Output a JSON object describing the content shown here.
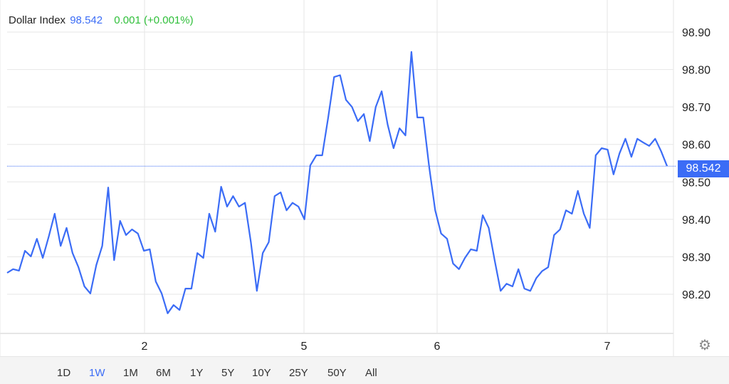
{
  "header": {
    "title": "Dollar Index",
    "price": "98.542",
    "change": "0.001 (+0.001%)"
  },
  "colors": {
    "line": "#3b6cf6",
    "change_positive": "#2fbf3a",
    "grid": "#e6e6e6"
  },
  "ranges": [
    {
      "label": "1D"
    },
    {
      "label": "1W",
      "active": true
    },
    {
      "label": "1M"
    },
    {
      "label": "6M"
    },
    {
      "label": "1Y"
    },
    {
      "label": "5Y"
    },
    {
      "label": "10Y"
    },
    {
      "label": "25Y"
    },
    {
      "label": "50Y"
    },
    {
      "label": "All"
    }
  ],
  "settings_icon": "gear-icon",
  "chart_data": {
    "type": "line",
    "title": "Dollar Index",
    "last_value": 98.542,
    "last_value_label": "98.542",
    "ylim": [
      98.11,
      98.985
    ],
    "y_ticks": [
      "98.20",
      "98.30",
      "98.40",
      "98.50",
      "98.60",
      "98.70",
      "98.80",
      "98.90"
    ],
    "x_ticks": [
      "2",
      "5",
      "6",
      "7"
    ],
    "grid": true,
    "series": [
      {
        "values": [
          98.257,
          98.267,
          98.263,
          98.316,
          98.301,
          98.348,
          98.297,
          98.354,
          98.415,
          98.329,
          98.377,
          98.31,
          98.272,
          98.221,
          98.202,
          98.278,
          98.329,
          98.485,
          98.291,
          98.396,
          98.358,
          98.373,
          98.362,
          98.316,
          98.32,
          98.234,
          98.202,
          98.149,
          98.171,
          98.158,
          98.215,
          98.215,
          98.31,
          98.297,
          98.415,
          98.367,
          98.487,
          98.434,
          98.462,
          98.434,
          98.444,
          98.339,
          98.209,
          98.31,
          98.339,
          98.462,
          98.472,
          98.424,
          98.444,
          98.434,
          98.4,
          98.544,
          98.571,
          98.571,
          98.672,
          98.78,
          98.785,
          98.719,
          98.7,
          98.662,
          98.681,
          98.609,
          98.7,
          98.742,
          98.653,
          98.59,
          98.643,
          98.624,
          98.847,
          98.672,
          98.672,
          98.539,
          98.424,
          98.362,
          98.348,
          98.282,
          98.267,
          98.297,
          98.32,
          98.316,
          98.411,
          98.377,
          98.291,
          98.209,
          98.228,
          98.221,
          98.267,
          98.215,
          98.209,
          98.243,
          98.262,
          98.272,
          98.358,
          98.373,
          98.424,
          98.415,
          98.476,
          98.415,
          98.377,
          98.571,
          98.59,
          98.586,
          98.52,
          98.576,
          98.615,
          98.567,
          98.615,
          98.605,
          98.596,
          98.615,
          98.582,
          98.542
        ]
      }
    ]
  }
}
